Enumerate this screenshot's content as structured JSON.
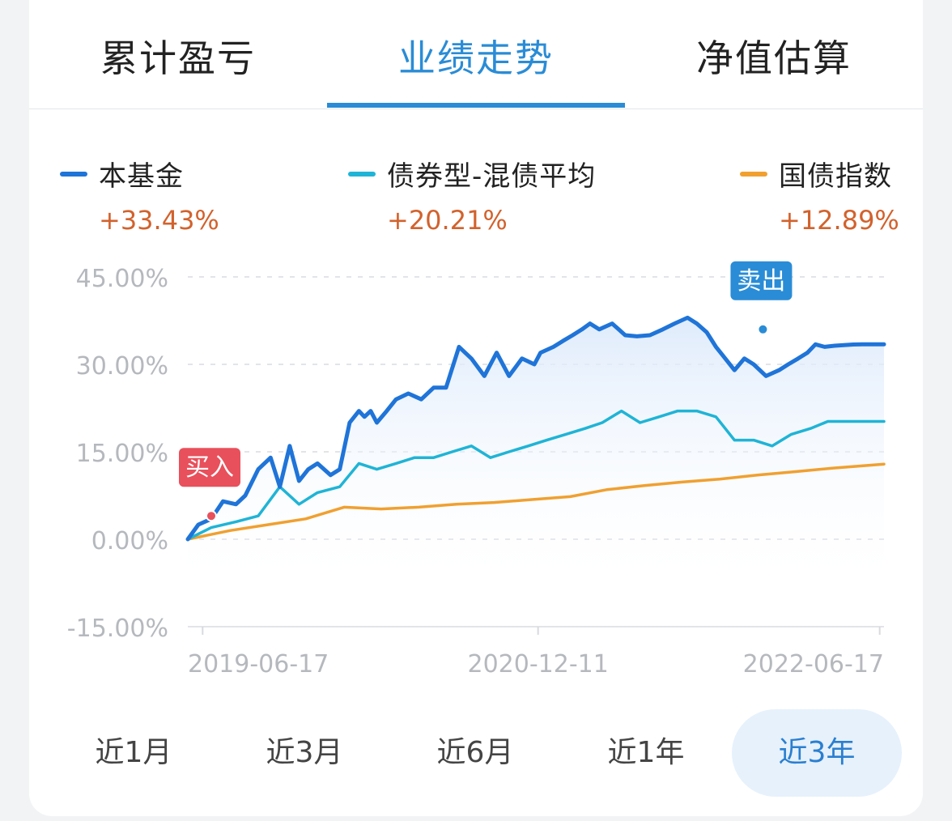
{
  "tabs": [
    {
      "label": "累计盈亏"
    },
    {
      "label": "业绩走势"
    },
    {
      "label": "净值估算"
    }
  ],
  "active_tab": 1,
  "legend": [
    {
      "name": "本基金",
      "value": "+33.43%",
      "color": "#1f74d8"
    },
    {
      "name": "债券型-混债平均",
      "value": "+20.21%",
      "color": "#1fb4d6"
    },
    {
      "name": "国债指数",
      "value": "+12.89%",
      "color": "#f0a030"
    }
  ],
  "periods": [
    {
      "label": "近1月"
    },
    {
      "label": "近3月"
    },
    {
      "label": "近6月"
    },
    {
      "label": "近1年"
    },
    {
      "label": "近3年"
    }
  ],
  "active_period": 4,
  "chart_data": {
    "type": "line",
    "ylim": [
      -15,
      45
    ],
    "yticks": [
      "45.00%",
      "30.00%",
      "15.00%",
      "0.00%",
      "-15.00%"
    ],
    "ytick_values": [
      45,
      30,
      15,
      0,
      -15
    ],
    "x_range": [
      "2019-05-24",
      "2022-06-24"
    ],
    "xticks": [
      {
        "label": "2019-06-17",
        "date": "2019-06-17"
      },
      {
        "label": "2020-12-11",
        "date": "2020-12-11"
      },
      {
        "label": "2022-06-17",
        "date": "2022-06-17"
      }
    ],
    "grid": true,
    "series": [
      {
        "name": "本基金",
        "color": "#1f74d8",
        "x": [
          "2019-05-24",
          "2019-06-10",
          "2019-07-01",
          "2019-07-20",
          "2019-08-10",
          "2019-08-25",
          "2019-09-15",
          "2019-10-05",
          "2019-10-20",
          "2019-11-05",
          "2019-11-20",
          "2019-12-05",
          "2019-12-20",
          "2020-01-10",
          "2020-01-25",
          "2020-02-10",
          "2020-02-25",
          "2020-03-05",
          "2020-03-15",
          "2020-03-25",
          "2020-04-10",
          "2020-04-25",
          "2020-05-15",
          "2020-06-05",
          "2020-06-25",
          "2020-07-15",
          "2020-08-05",
          "2020-08-25",
          "2020-09-15",
          "2020-10-05",
          "2020-10-25",
          "2020-11-15",
          "2020-12-05",
          "2020-12-15",
          "2021-01-05",
          "2021-01-20",
          "2021-02-05",
          "2021-02-20",
          "2021-03-05",
          "2021-03-20",
          "2021-04-10",
          "2021-05-01",
          "2021-05-20",
          "2021-06-10",
          "2021-07-01",
          "2021-07-20",
          "2021-08-10",
          "2021-08-25",
          "2021-09-10",
          "2021-09-25",
          "2021-10-10",
          "2021-10-25",
          "2021-11-10",
          "2021-11-25",
          "2021-12-15",
          "2022-01-05",
          "2022-01-20",
          "2022-02-05",
          "2022-02-20",
          "2022-03-05",
          "2022-03-20",
          "2022-04-05",
          "2022-04-20",
          "2022-05-05",
          "2022-05-20",
          "2022-06-05",
          "2022-06-24"
        ],
        "values": [
          0,
          2.5,
          3.5,
          6.5,
          6,
          7.5,
          12,
          14,
          9,
          16,
          10,
          12,
          13,
          11,
          12,
          20,
          22,
          21,
          22,
          20,
          22,
          24,
          25,
          24,
          26,
          26,
          33,
          31,
          28,
          32,
          28,
          31,
          30,
          32,
          33,
          34,
          35,
          36,
          37,
          36,
          37,
          35,
          34.8,
          35,
          36,
          37,
          38,
          37,
          35.5,
          33,
          31,
          29,
          31,
          30,
          28,
          29,
          30,
          31,
          32,
          33.43,
          33,
          33.2,
          33.3,
          33.4,
          33.43,
          33.43,
          33.43
        ],
        "note": "display curve"
      },
      {
        "name": "债券型-混债平均",
        "color": "#1fb4d6",
        "x": [
          "2019-05-24",
          "2019-07-01",
          "2019-08-10",
          "2019-09-15",
          "2019-10-20",
          "2019-11-20",
          "2019-12-20",
          "2020-01-25",
          "2020-02-25",
          "2020-03-25",
          "2020-04-25",
          "2020-05-25",
          "2020-06-25",
          "2020-07-25",
          "2020-08-25",
          "2020-09-25",
          "2020-10-25",
          "2020-11-25",
          "2020-12-25",
          "2021-01-25",
          "2021-02-25",
          "2021-03-25",
          "2021-04-25",
          "2021-05-25",
          "2021-06-25",
          "2021-07-25",
          "2021-08-25",
          "2021-09-25",
          "2021-10-25",
          "2021-11-25",
          "2021-12-25",
          "2022-01-25",
          "2022-02-25",
          "2022-03-25",
          "2022-04-25",
          "2022-05-25",
          "2022-06-24"
        ],
        "values": [
          0,
          2,
          3,
          4,
          9,
          6,
          8,
          9,
          13,
          12,
          13,
          14,
          14,
          15,
          16,
          14,
          15,
          16,
          17,
          18,
          19,
          20,
          22,
          20,
          21,
          22,
          22,
          21,
          17,
          17,
          16,
          18,
          19,
          20.21,
          20.21,
          20.21,
          20.21
        ]
      },
      {
        "name": "国债指数",
        "color": "#f0a030",
        "x": [
          "2019-05-24",
          "2019-08-01",
          "2019-10-01",
          "2019-12-01",
          "2020-02-01",
          "2020-04-01",
          "2020-06-01",
          "2020-08-01",
          "2020-10-01",
          "2020-12-01",
          "2021-02-01",
          "2021-04-01",
          "2021-06-01",
          "2021-08-01",
          "2021-10-01",
          "2021-12-01",
          "2022-02-01",
          "2022-04-01",
          "2022-06-24"
        ],
        "values": [
          0,
          1.5,
          2.5,
          3.5,
          5.5,
          5.2,
          5.5,
          6,
          6.3,
          6.8,
          7.3,
          8.5,
          9.2,
          9.8,
          10.3,
          11,
          11.6,
          12.2,
          12.89
        ]
      }
    ],
    "markers": [
      {
        "label": "买入",
        "date": "2019-07-01",
        "value": 4,
        "color": "#e8505b"
      },
      {
        "label": "卖出",
        "date": "2021-12-10",
        "value": 36,
        "color": "#2a8cd6"
      }
    ]
  }
}
